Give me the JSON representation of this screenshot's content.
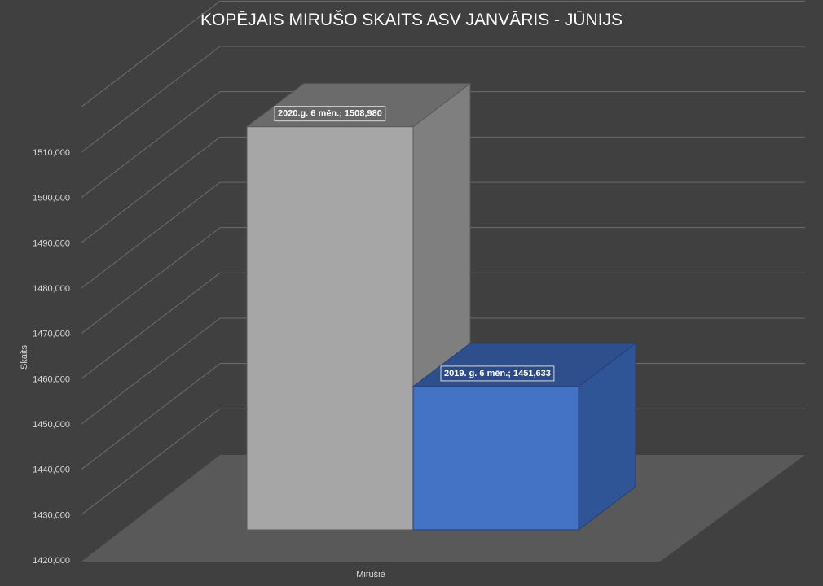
{
  "chart_data": {
    "type": "bar",
    "style": "3d-column",
    "title": "KOPĒJAIS MIRUŠO SKAITS ASV JANVĀRIS - JŪNIJS",
    "xlabel": "Mirušie",
    "ylabel": "Skaits",
    "ylim": [
      1420000,
      1510000
    ],
    "yticks": [
      "1420,000",
      "1430,000",
      "1440,000",
      "1450,000",
      "1460,000",
      "1470,000",
      "1480,000",
      "1490,000",
      "1500,000",
      "1510,000"
    ],
    "ytick_values": [
      1420000,
      1430000,
      1440000,
      1450000,
      1460000,
      1470000,
      1480000,
      1490000,
      1500000,
      1510000
    ],
    "grid": true,
    "series": [
      {
        "name": "2020.g. 6 mēn.",
        "value": 1508980,
        "label": "2020.g. 6 mēn.; 1508,980",
        "color": "#a6a6a6"
      },
      {
        "name": "2019. g. 6 mēn.",
        "value": 1451633,
        "label": "2019. g. 6 mēn.; 1451,633",
        "color": "#4472c4"
      }
    ],
    "colors": {
      "background": "#404040",
      "floor": "#595959",
      "gridline": "#6d6d6d",
      "text": "#d9d9d9"
    }
  }
}
